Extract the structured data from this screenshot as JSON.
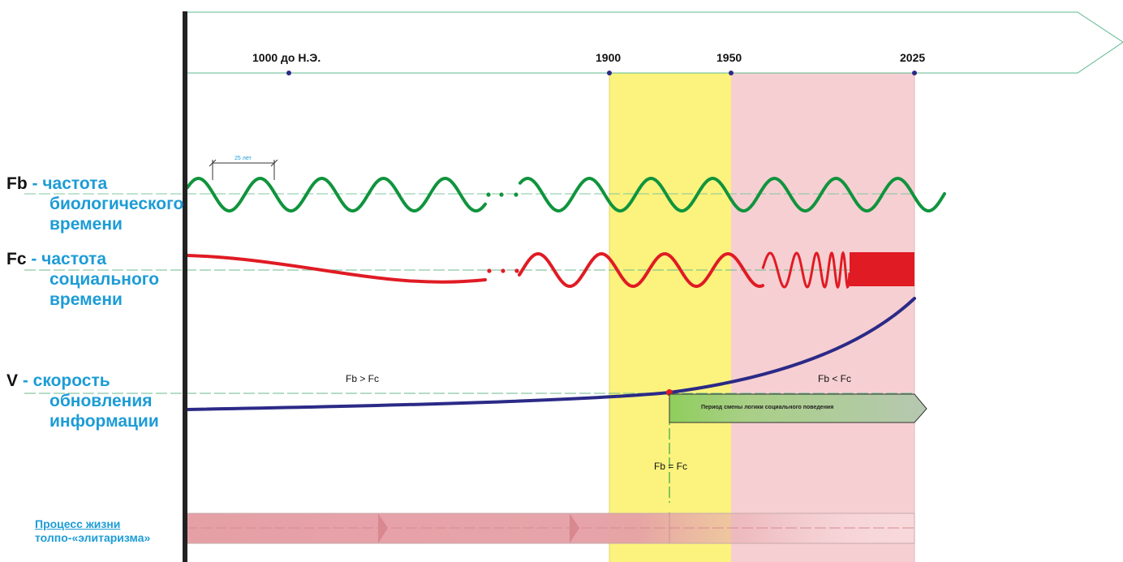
{
  "timeline": {
    "points": [
      {
        "label": "1000 до Н.Э."
      },
      {
        "label": "1900"
      },
      {
        "label": "1950"
      },
      {
        "label": "2025"
      }
    ]
  },
  "rows": {
    "fb": {
      "symbol": "Fb",
      "line1": " - частота",
      "line2": "биологического",
      "line3": "времени"
    },
    "fc": {
      "symbol": "Fc",
      "line1": " - частота",
      "line2": "социального",
      "line3": "времени"
    },
    "v": {
      "symbol": "V",
      "line1": " - скорость",
      "line2": "обновления",
      "line3": "информации"
    }
  },
  "annotations": {
    "period_25": "25 лет",
    "fb_gt_fc": "Fb  > Fc",
    "fb_lt_fc": "Fb <  Fc",
    "fb_eq_fc": "Fb = Fc",
    "logic_change": "Период смены логики социального поведения"
  },
  "process": {
    "line1": "Процесс жизни",
    "line2": "толпо-«элитаризма»"
  },
  "colors": {
    "zone_1900_1950": "#fbf37d",
    "zone_1950_2025": "#f6cfd2",
    "bio_wave": "#10943d",
    "social_wave": "#e01b24",
    "speed_curve": "#2b2a87",
    "label_blue": "#1d9cd6",
    "axis_arrow": "#5cb88c",
    "process_bar": "#e5a0a6"
  }
}
